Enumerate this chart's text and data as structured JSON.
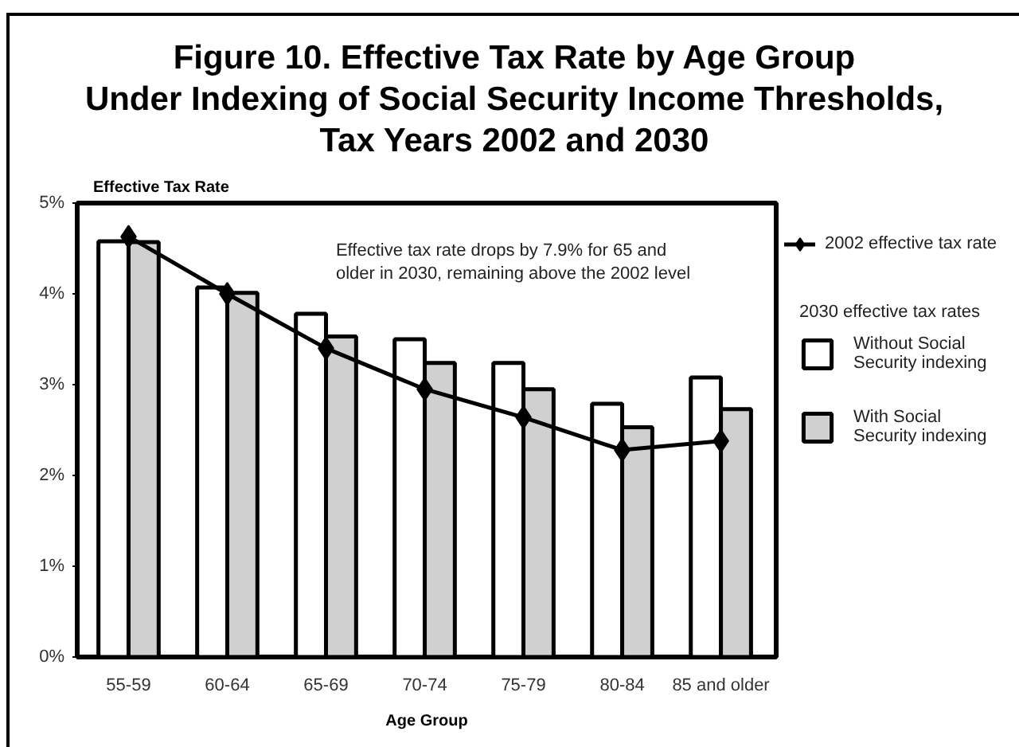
{
  "chart_data": {
    "type": "bar",
    "title": "Figure 10. Effective Tax Rate by Age Group\nUnder Indexing of Social Security Income Thresholds,\nTax Years 2002 and 2030",
    "xlabel": "Age Group",
    "ylabel": "Effective Tax Rate",
    "legend_title": "2030 effective tax rates",
    "annotations": [
      "Effective tax rate drops by 7.9% for 65 and older in 2030, remaining above the 2002 level"
    ],
    "categories": [
      "55-59",
      "60-64",
      "65-69",
      "70-74",
      "75-79",
      "80-84",
      "85 and older"
    ],
    "series": [
      {
        "name": "2002 effective tax rate",
        "type": "line",
        "color": "#000000",
        "values": [
          4.63,
          4.0,
          3.4,
          2.95,
          2.64,
          2.28,
          2.38
        ]
      },
      {
        "name": "Without Social Security indexing",
        "color": "#ffffff",
        "values": [
          4.58,
          4.07,
          3.78,
          3.5,
          3.24,
          2.79,
          3.08
        ]
      },
      {
        "name": "With Social Security indexing",
        "color": "#d0d0d0",
        "values": [
          4.57,
          4.01,
          3.53,
          3.24,
          2.95,
          2.53,
          2.73
        ]
      }
    ],
    "ylim": [
      0,
      5
    ],
    "yticks": [
      {
        "value": 0,
        "label": "0%"
      },
      {
        "value": 1,
        "label": "1%"
      },
      {
        "value": 2,
        "label": "2%"
      },
      {
        "value": 3,
        "label": "3%"
      },
      {
        "value": 4,
        "label": "4%"
      },
      {
        "value": 5,
        "label": "5%"
      }
    ],
    "marker": "diamond",
    "line_style": "solid",
    "grid": false,
    "legend": "right"
  }
}
